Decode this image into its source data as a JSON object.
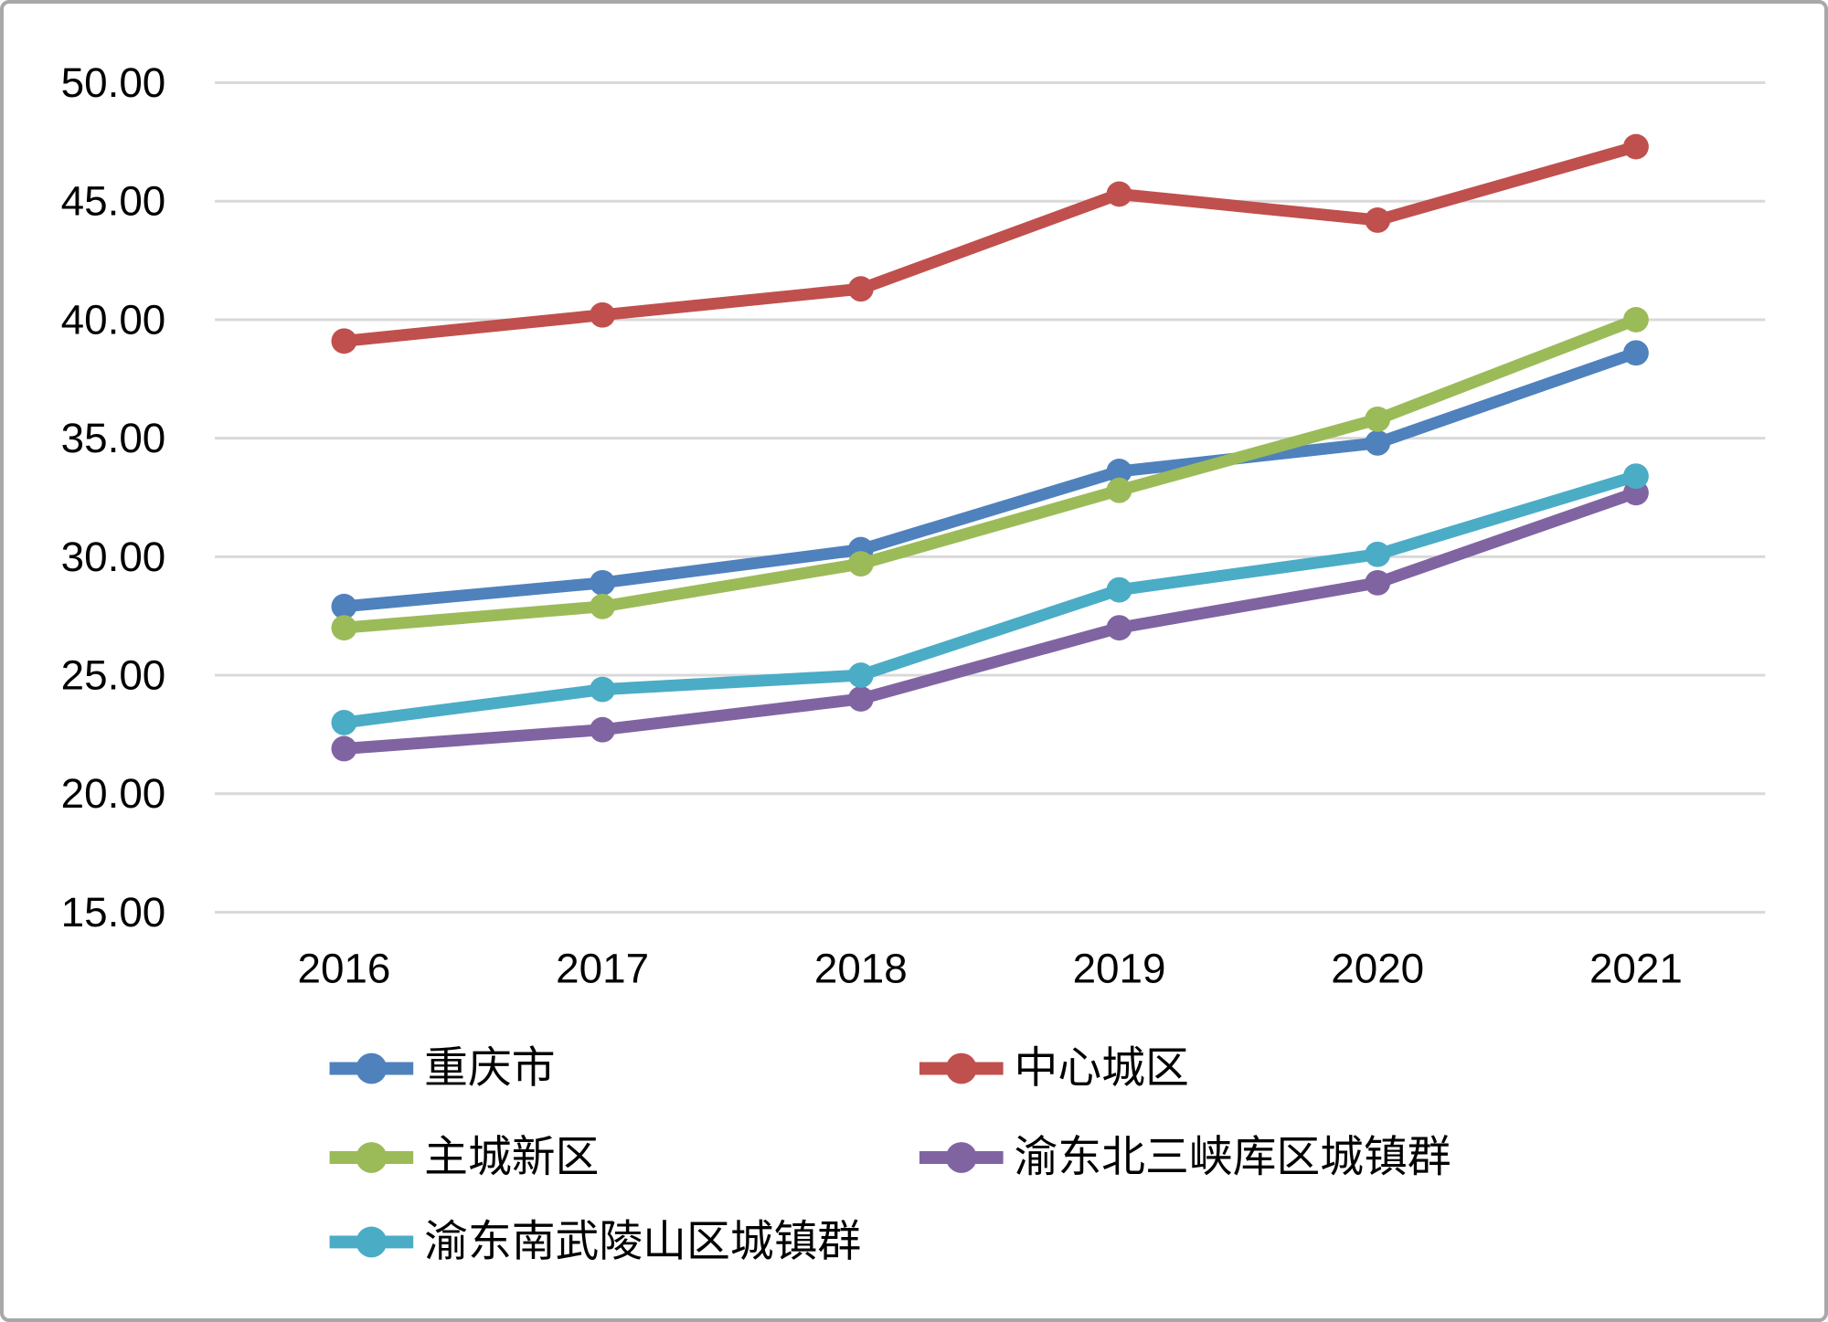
{
  "chart_data": {
    "type": "line",
    "title": "",
    "categories": [
      "2016",
      "2017",
      "2018",
      "2019",
      "2020",
      "2021"
    ],
    "series": [
      {
        "name": "重庆市",
        "color": "#4F81BD",
        "values": [
          27.9,
          28.9,
          30.3,
          33.6,
          34.8,
          38.6
        ]
      },
      {
        "name": "中心城区",
        "color": "#C0504D",
        "values": [
          39.1,
          40.2,
          41.3,
          45.3,
          44.2,
          47.3
        ]
      },
      {
        "name": "主城新区",
        "color": "#9BBB59",
        "values": [
          27.0,
          27.9,
          29.7,
          32.8,
          35.8,
          40.0
        ]
      },
      {
        "name": "渝东北三峡库区城镇群",
        "color": "#8064A2",
        "values": [
          21.9,
          22.7,
          24.0,
          27.0,
          28.9,
          32.7
        ]
      },
      {
        "name": "渝东南武陵山区城镇群",
        "color": "#4BACC6",
        "values": [
          23.0,
          24.4,
          25.0,
          28.6,
          30.1,
          33.4
        ]
      }
    ],
    "y_ticks": [
      "50.00",
      "45.00",
      "40.00",
      "35.00",
      "30.00",
      "25.00",
      "20.00",
      "15.00"
    ],
    "ylim": [
      15,
      50
    ],
    "xlabel": "",
    "ylabel": "",
    "grid": true,
    "legend_position": "bottom",
    "legend_rows": [
      [
        "重庆市",
        "中心城区"
      ],
      [
        "主城新区",
        "渝东北三峡库区城镇群"
      ],
      [
        "渝东南武陵山区城镇群"
      ]
    ]
  },
  "colors": {
    "gridline": "#D9D9D9",
    "axis_text": "#000000",
    "frame_border": "#A8A8A8",
    "background": "#FFFFFF"
  }
}
